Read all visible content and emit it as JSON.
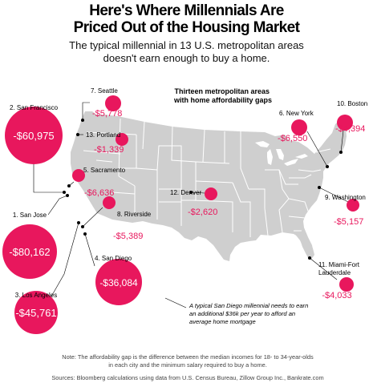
{
  "headline": {
    "line1": "Here's Where Millennials Are",
    "line2": "Priced Out of the Housing Market"
  },
  "subhead": {
    "line1": "The typical millennial in 13 U.S. metropolitan areas",
    "line2": "doesn't earn enough to buy a home."
  },
  "map_legend": {
    "line1": "Thirteen metropolitan areas",
    "line2": "with home affordability gaps"
  },
  "colors": {
    "accent": "#e8175d",
    "land": "#cfcfcf",
    "borders": "#ffffff",
    "leader": "#000000"
  },
  "markers": [
    {
      "id": "seattle",
      "rank": "7.",
      "name": "Seattle",
      "gap": "-$5,778"
    },
    {
      "id": "portland",
      "rank": "13.",
      "name": "Portland",
      "gap": "-$1,339"
    },
    {
      "id": "san-francisco",
      "rank": "2.",
      "name": "San Francisco",
      "gap": "-$60,975"
    },
    {
      "id": "sacramento",
      "rank": "5.",
      "name": "Sacramento",
      "gap": "-$6,636"
    },
    {
      "id": "san-jose",
      "rank": "1.",
      "name": "San Jose",
      "gap": "-$80,162"
    },
    {
      "id": "riverside",
      "rank": "8.",
      "name": "Riverside",
      "gap": "-$5,389"
    },
    {
      "id": "los-angeles",
      "rank": "3.",
      "name": "Los Angeles",
      "gap": "-$45,761"
    },
    {
      "id": "san-diego",
      "rank": "4.",
      "name": "San Diego",
      "gap": "-$36,084"
    },
    {
      "id": "denver",
      "rank": "12.",
      "name": "Denver",
      "gap": "-$2,620"
    },
    {
      "id": "new-york",
      "rank": "6.",
      "name": "New York",
      "gap": "-$6,550"
    },
    {
      "id": "boston",
      "rank": "10.",
      "name": "Boston",
      "gap": "-$4,394"
    },
    {
      "id": "washington",
      "rank": "9.",
      "name": "Washington",
      "gap": "-$5,157"
    },
    {
      "id": "miami",
      "rank": "11.",
      "name": "Miami-Fort",
      "name2": "Lauderdale",
      "gap": "-$4,033"
    }
  ],
  "annotation": {
    "line1": "A typical San Diego millennial needs to earn",
    "line2": "an additional $36k per year to afford an",
    "line3": "average home mortgage"
  },
  "note": {
    "line1": "Note: The affordability gap is the difference between the median incomes for 18- to 34-year-olds",
    "line2": "in each city and the minimum salary required to buy a home."
  },
  "source": "Sources: Bloomberg calculations using data from U.S. Census Bureau, Zillow Group Inc., Bankrate.com"
}
